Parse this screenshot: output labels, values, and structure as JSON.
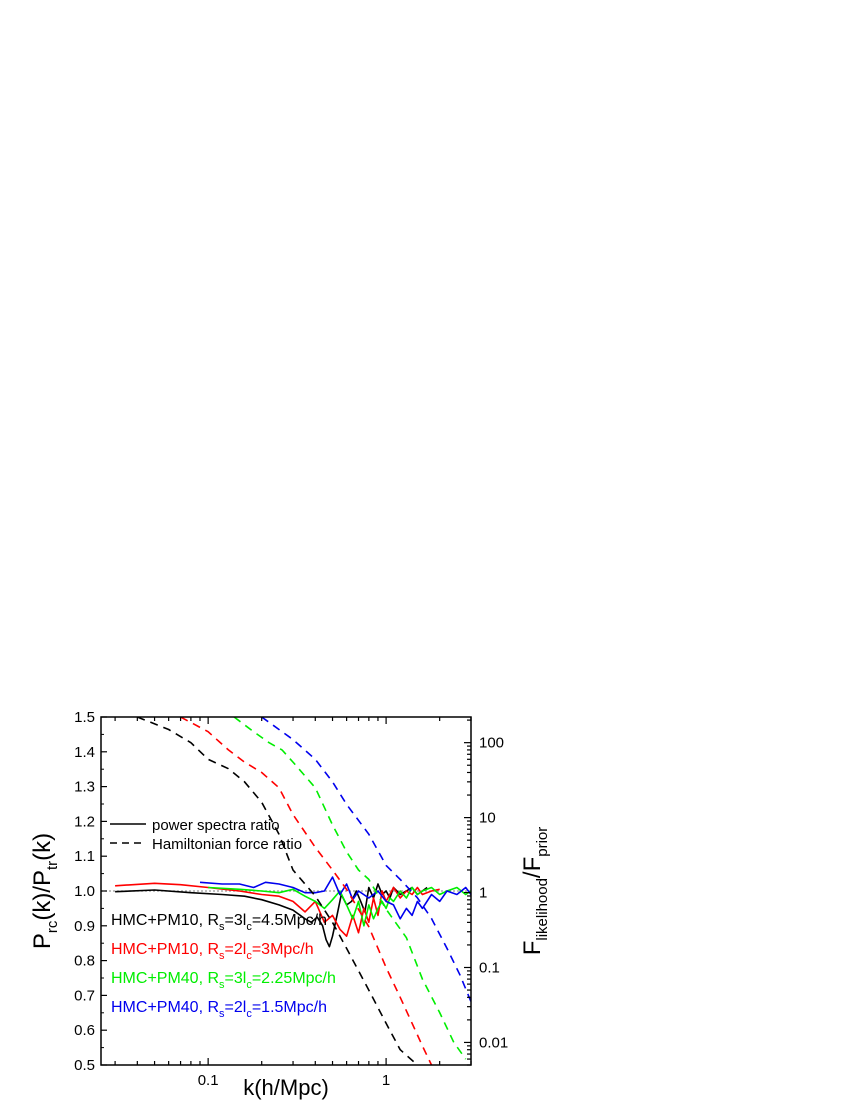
{
  "chart_data": {
    "type": "line",
    "xlabel": "k(h/Mpc)",
    "ylabel": "P_rc(k)/P_tr(k)",
    "ylabel_parts": {
      "main1": "P",
      "sub1": "rc",
      "main2": "(k)/P",
      "sub2": "tr",
      "main3": "(k)"
    },
    "y2label": "F_likelihood/F_prior",
    "y2label_parts": {
      "main1": "F",
      "sub1": "likelihood",
      "main2": "/F",
      "sub2": "prior"
    },
    "xscale": "log",
    "xlim": [
      0.025,
      3.0
    ],
    "ylim": [
      0.5,
      1.5
    ],
    "y2scale": "log",
    "y2lim": [
      0.005,
      220
    ],
    "x_ticks": [
      0.1,
      1
    ],
    "x_tick_labels": [
      "0.1",
      "1"
    ],
    "y_ticks": [
      0.5,
      0.6,
      0.7,
      0.8,
      0.9,
      1.0,
      1.1,
      1.2,
      1.3,
      1.4,
      1.5
    ],
    "y_tick_labels": [
      "0.5",
      "0.6",
      "0.7",
      "0.8",
      "0.9",
      "1.0",
      "1.1",
      "1.2",
      "1.3",
      "1.4",
      "1.5"
    ],
    "y2_ticks": [
      0.01,
      0.1,
      1,
      10,
      100
    ],
    "y2_tick_labels": [
      "0.01",
      "0.1",
      "1",
      "10",
      "100"
    ],
    "reference_line": {
      "y": 1.0,
      "style": "dotted",
      "color": "#999999"
    },
    "line_style_legend": [
      {
        "label": "power spectra ratio",
        "style": "solid"
      },
      {
        "label": "Hamiltonian force ratio",
        "style": "dashed"
      }
    ],
    "series_labels": [
      {
        "id": "black",
        "color": "#000000",
        "prefix": "HMC+PM10, R",
        "sub_s": "s",
        "mid": "=3l",
        "sub_c": "c",
        "suffix": "=4.5Mpc/h"
      },
      {
        "id": "red",
        "color": "#ff0000",
        "prefix": "HMC+PM10, R",
        "sub_s": "s",
        "mid": "=2l",
        "sub_c": "c",
        "suffix": "=3Mpc/h"
      },
      {
        "id": "green",
        "color": "#00ee00",
        "prefix": "HMC+PM40, R",
        "sub_s": "s",
        "mid": "=3l",
        "sub_c": "c",
        "suffix": "=2.25Mpc/h"
      },
      {
        "id": "blue",
        "color": "#0000ee",
        "prefix": "HMC+PM40, R",
        "sub_s": "s",
        "mid": "=2l",
        "sub_c": "c",
        "suffix": "=1.5Mpc/h"
      }
    ],
    "series": [
      {
        "name": "HMC+PM10, Rs=3lc=4.5Mpc/h — power spectra ratio",
        "color": "#000000",
        "style": "solid",
        "axis": "left",
        "x": [
          0.03,
          0.05,
          0.08,
          0.12,
          0.16,
          0.2,
          0.25,
          0.3,
          0.35,
          0.38,
          0.41,
          0.44,
          0.46,
          0.48,
          0.5,
          0.53,
          0.56,
          0.6,
          0.64,
          0.68,
          0.72,
          0.76,
          0.8,
          0.85,
          0.9,
          0.95,
          1.0,
          1.05,
          1.1,
          1.15,
          1.2,
          1.3,
          1.4,
          1.5,
          1.6,
          1.7
        ],
        "y": [
          0.998,
          1.003,
          0.995,
          0.99,
          0.985,
          0.975,
          0.96,
          0.945,
          0.92,
          0.91,
          0.925,
          0.9,
          0.86,
          0.84,
          0.87,
          0.93,
          0.99,
          0.96,
          0.97,
          1.0,
          0.97,
          0.94,
          1.01,
          0.98,
          1.02,
          0.99,
          1.0,
          0.98,
          1.01,
          1.0,
          0.99,
          1.0,
          1.01,
          0.99,
          1.0,
          1.01
        ]
      },
      {
        "name": "HMC+PM10, Rs=2lc=3Mpc/h — power spectra ratio",
        "color": "#ff0000",
        "style": "solid",
        "axis": "left",
        "x": [
          0.03,
          0.05,
          0.07,
          0.1,
          0.15,
          0.2,
          0.25,
          0.3,
          0.35,
          0.4,
          0.45,
          0.5,
          0.55,
          0.6,
          0.65,
          0.7,
          0.75,
          0.8,
          0.85,
          0.9,
          0.95,
          1.0,
          1.1,
          1.2,
          1.3,
          1.4,
          1.5,
          1.6,
          1.8,
          2.0
        ],
        "y": [
          1.015,
          1.022,
          1.018,
          1.01,
          1.0,
          0.99,
          0.985,
          0.97,
          0.94,
          0.97,
          0.91,
          0.93,
          0.89,
          0.87,
          0.93,
          0.88,
          0.95,
          0.91,
          0.98,
          0.93,
          1.0,
          0.97,
          1.01,
          0.98,
          1.0,
          0.99,
          1.01,
          0.99,
          1.0,
          1.005
        ]
      },
      {
        "name": "HMC+PM40, Rs=3lc=2.25Mpc/h — power spectra ratio",
        "color": "#00ee00",
        "style": "solid",
        "axis": "left",
        "x": [
          0.1,
          0.15,
          0.2,
          0.25,
          0.3,
          0.35,
          0.4,
          0.45,
          0.5,
          0.55,
          0.6,
          0.65,
          0.7,
          0.75,
          0.8,
          0.85,
          0.9,
          0.95,
          1.0,
          1.05,
          1.1,
          1.2,
          1.3,
          1.4,
          1.5,
          1.6,
          1.8,
          2.0,
          2.2,
          2.5,
          2.8,
          3.0
        ],
        "y": [
          1.01,
          1.005,
          1.0,
          0.995,
          1.005,
          0.985,
          0.97,
          0.95,
          0.975,
          1.0,
          0.96,
          0.92,
          0.97,
          0.9,
          0.96,
          0.92,
          0.95,
          0.97,
          0.95,
          0.98,
          0.97,
          1.0,
          0.98,
          1.01,
          0.99,
          1.0,
          1.01,
          0.99,
          1.0,
          1.01,
          0.99,
          1.0
        ]
      },
      {
        "name": "HMC+PM40, Rs=2lc=1.5Mpc/h — power spectra ratio",
        "color": "#0000ee",
        "style": "solid",
        "axis": "left",
        "x": [
          0.09,
          0.12,
          0.15,
          0.18,
          0.21,
          0.25,
          0.3,
          0.35,
          0.4,
          0.45,
          0.5,
          0.55,
          0.6,
          0.65,
          0.7,
          0.8,
          0.9,
          1.0,
          1.1,
          1.2,
          1.3,
          1.4,
          1.5,
          1.6,
          1.8,
          2.0,
          2.2,
          2.5,
          2.8,
          3.0
        ],
        "y": [
          1.025,
          1.02,
          1.02,
          1.01,
          1.025,
          1.02,
          1.01,
          0.995,
          0.995,
          1.0,
          1.04,
          0.99,
          1.02,
          0.975,
          1.0,
          0.98,
          1.0,
          0.97,
          0.96,
          0.92,
          0.95,
          0.93,
          0.97,
          0.95,
          0.99,
          0.97,
          1.0,
          0.99,
          1.01,
          0.99
        ]
      },
      {
        "name": "HMC+PM10, Rs=3lc=4.5Mpc/h — Hamiltonian force ratio",
        "color": "#000000",
        "style": "dashed",
        "axis": "right",
        "x": [
          0.04,
          0.06,
          0.08,
          0.1,
          0.13,
          0.16,
          0.2,
          0.25,
          0.3,
          0.4,
          0.5,
          0.6,
          0.8,
          1.0,
          1.2,
          1.5
        ],
        "y": [
          220,
          150,
          100,
          60,
          45,
          30,
          16,
          6.0,
          2.0,
          0.9,
          0.4,
          0.18,
          0.05,
          0.018,
          0.008,
          0.005
        ]
      },
      {
        "name": "HMC+PM10, Rs=2lc=3Mpc/h — Hamiltonian force ratio",
        "color": "#ff0000",
        "style": "dashed",
        "axis": "right",
        "x": [
          0.07,
          0.1,
          0.13,
          0.16,
          0.2,
          0.25,
          0.3,
          0.4,
          0.5,
          0.6,
          0.8,
          1.0,
          1.2,
          1.4,
          1.6,
          1.8
        ],
        "y": [
          220,
          140,
          80,
          55,
          40,
          25,
          11,
          4.0,
          2.0,
          1.1,
          0.35,
          0.1,
          0.04,
          0.018,
          0.009,
          0.005
        ]
      },
      {
        "name": "HMC+PM40, Rs=3lc=2.25Mpc/h — Hamiltonian force ratio",
        "color": "#00ee00",
        "style": "dashed",
        "axis": "right",
        "x": [
          0.14,
          0.18,
          0.22,
          0.26,
          0.3,
          0.4,
          0.5,
          0.6,
          0.7,
          0.8,
          1.0,
          1.3,
          1.6,
          2.0,
          2.4,
          2.8
        ],
        "y": [
          220,
          140,
          100,
          80,
          55,
          25,
          8.0,
          3.5,
          2.0,
          1.5,
          0.6,
          0.25,
          0.07,
          0.025,
          0.01,
          0.006
        ]
      },
      {
        "name": "HMC+PM40, Rs=2lc=1.5Mpc/h — Hamiltonian force ratio",
        "color": "#0000ee",
        "style": "dashed",
        "axis": "right",
        "x": [
          0.2,
          0.25,
          0.3,
          0.4,
          0.5,
          0.6,
          0.8,
          1.0,
          1.2,
          1.5,
          1.8,
          2.2,
          2.6,
          3.0
        ],
        "y": [
          220,
          150,
          110,
          60,
          30,
          15,
          6.0,
          2.3,
          1.5,
          0.85,
          0.45,
          0.18,
          0.08,
          0.035
        ]
      }
    ]
  }
}
